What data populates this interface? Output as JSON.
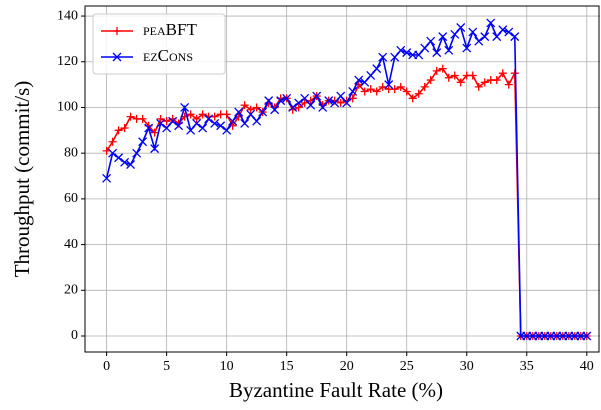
{
  "chart_data": {
    "type": "line",
    "xlabel": "Byzantine Fault Rate (%)",
    "ylabel": "Throughput (commit/s)",
    "x": [
      0,
      0.5,
      1,
      1.5,
      2,
      2.5,
      3,
      3.5,
      4,
      4.5,
      5,
      5.5,
      6,
      6.5,
      7,
      7.5,
      8,
      8.5,
      9,
      9.5,
      10,
      10.5,
      11,
      11.5,
      12,
      12.5,
      13,
      13.5,
      14,
      14.5,
      15,
      15.5,
      16,
      16.5,
      17,
      17.5,
      18,
      18.5,
      19,
      19.5,
      20,
      20.5,
      21,
      21.5,
      22,
      22.5,
      23,
      23.5,
      24,
      24.5,
      25,
      25.5,
      26,
      26.5,
      27,
      27.5,
      28,
      28.5,
      29,
      29.5,
      30,
      30.5,
      31,
      31.5,
      32,
      32.5,
      33,
      33.5,
      34,
      34.5,
      35,
      35.5,
      36,
      36.5,
      37,
      37.5,
      38,
      38.5,
      39,
      39.5,
      40
    ],
    "series": [
      {
        "name": "peaBFT",
        "color": "#ff0000",
        "marker": "+",
        "values": [
          81,
          85,
          90,
          91,
          96,
          95,
          95,
          92,
          89,
          95,
          94,
          95,
          93,
          96,
          97,
          95,
          97,
          96,
          96,
          97,
          97,
          92,
          96,
          101,
          99,
          100,
          98,
          102,
          100,
          104,
          104,
          99,
          100,
          102,
          103,
          105,
          101,
          103,
          103,
          102,
          103,
          104,
          110,
          107,
          108,
          107,
          109,
          108,
          108,
          109,
          107,
          104,
          106,
          109,
          112,
          116,
          117,
          113,
          114,
          111,
          114,
          114,
          109,
          111,
          112,
          112,
          115,
          110,
          115,
          0,
          0,
          0,
          0,
          0,
          0,
          0,
          0,
          0,
          0,
          0,
          0
        ]
      },
      {
        "name": "ezCons",
        "color": "#0000ff",
        "marker": "x",
        "values": [
          69,
          80,
          78,
          76,
          75,
          80,
          85,
          91,
          82,
          93,
          91,
          94,
          92,
          100,
          90,
          93,
          91,
          95,
          93,
          92,
          90,
          94,
          98,
          93,
          97,
          94,
          98,
          103,
          99,
          103,
          104,
          100,
          102,
          104,
          101,
          105,
          100,
          103,
          102,
          105,
          102,
          107,
          112,
          111,
          114,
          117,
          122,
          110,
          122,
          125,
          124,
          123,
          123,
          126,
          129,
          124,
          131,
          125,
          132,
          135,
          126,
          133,
          129,
          131,
          137,
          131,
          134,
          133,
          131,
          0,
          0,
          0,
          0,
          0,
          0,
          0,
          0,
          0,
          0,
          0,
          0
        ]
      }
    ],
    "xlim": [
      -1.8,
      41.1
    ],
    "ylim": [
      -7,
      144.4
    ],
    "xticks": [
      0,
      5,
      10,
      15,
      20,
      25,
      30,
      35,
      40
    ],
    "yticks": [
      0,
      20,
      40,
      60,
      80,
      100,
      120,
      140
    ],
    "grid": true,
    "legend": "upper left"
  }
}
